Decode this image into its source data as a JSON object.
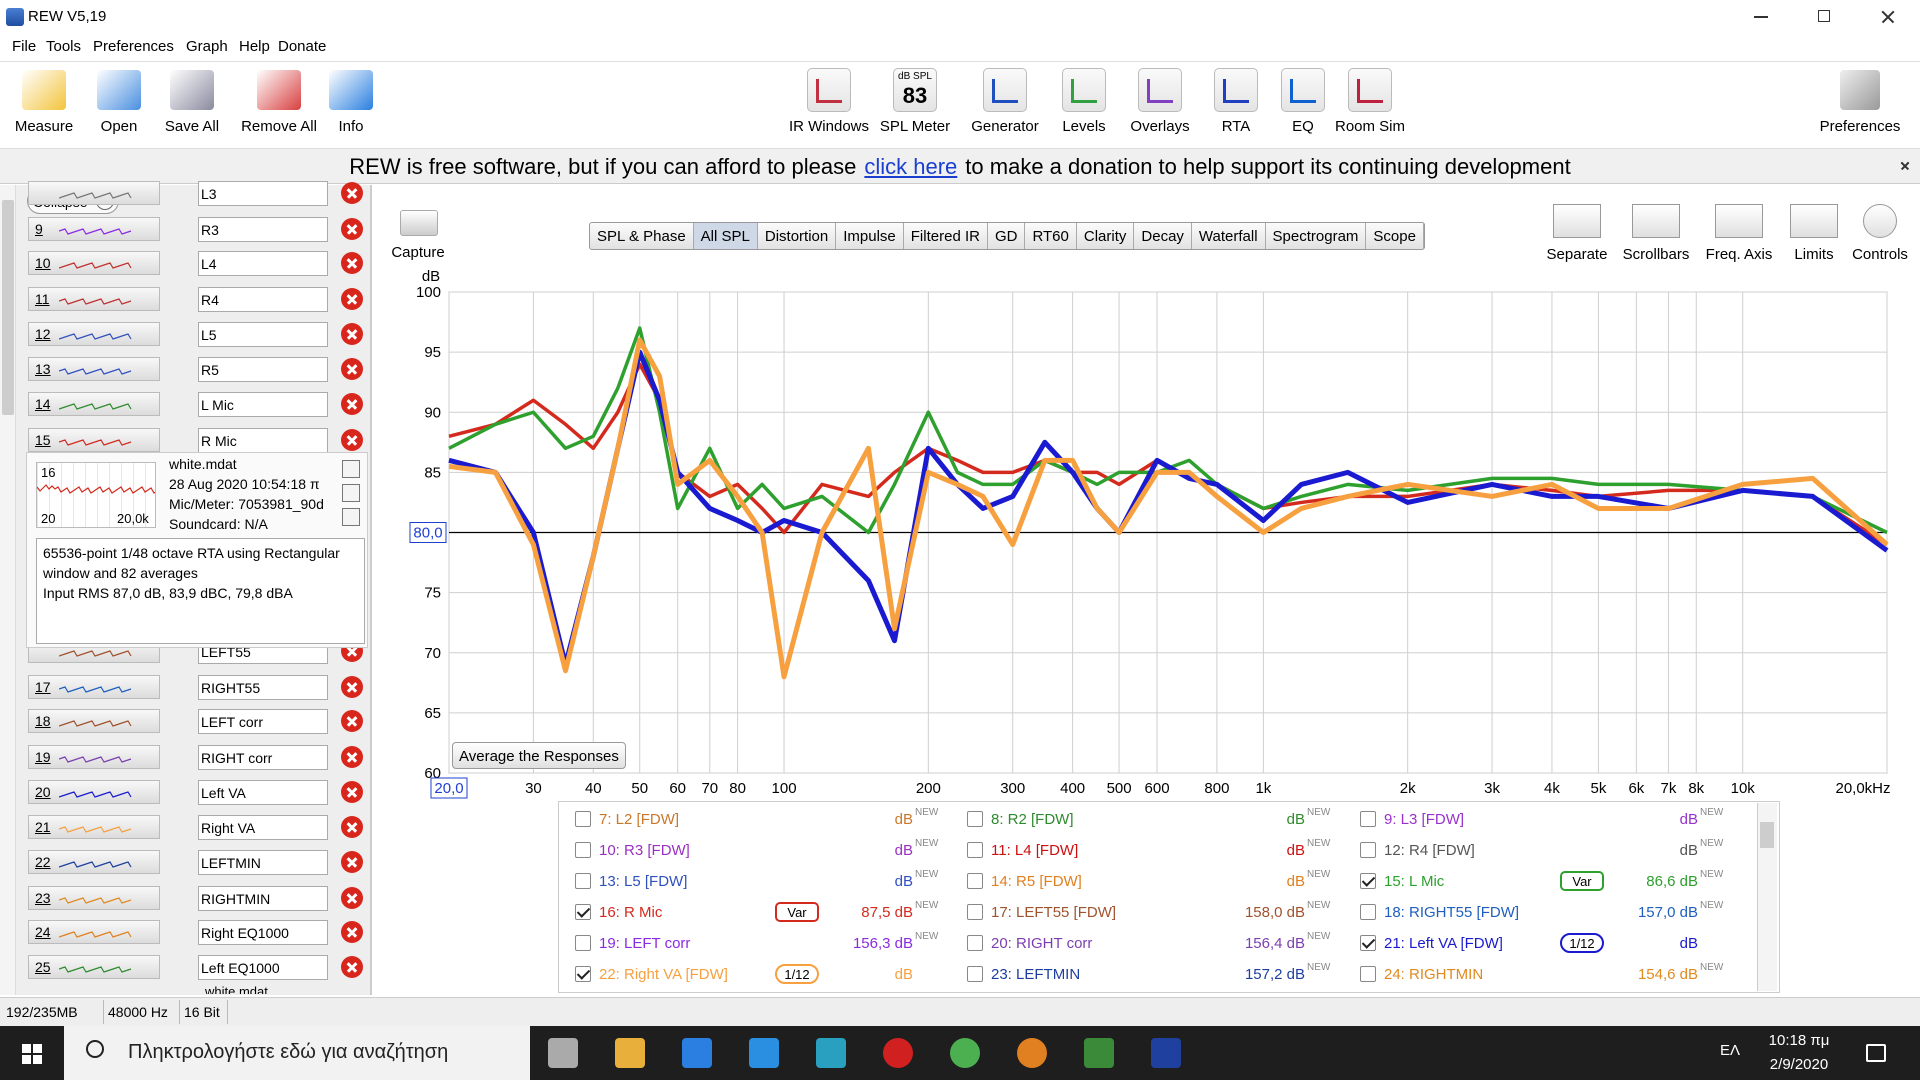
{
  "window": {
    "title": "REW V5,19"
  },
  "menu": [
    "File",
    "Tools",
    "Preferences",
    "Graph",
    "Help",
    "Donate"
  ],
  "toolbar_left": [
    "Measure",
    "Open",
    "Save All",
    "Remove All",
    "Info"
  ],
  "toolbar_center": [
    "IR Windows",
    "SPL Meter",
    "Generator",
    "Levels",
    "Overlays",
    "RTA",
    "EQ",
    "Room Sim"
  ],
  "spl_meter_icon": {
    "unit": "dB SPL",
    "reading": "83"
  },
  "toolbar_right": [
    "Preferences"
  ],
  "banner": {
    "before": "REW is free software, but if you can afford to please",
    "link": "click here",
    "after": "to make a donation to help support its continuing development"
  },
  "sidebar": {
    "collapse": "Collapse",
    "rows": [
      {
        "name": "L3"
      },
      {
        "number": "9",
        "name": "R3"
      },
      {
        "number": "10",
        "name": "L4"
      },
      {
        "number": "11",
        "name": "R4"
      },
      {
        "number": "12",
        "name": "L5"
      },
      {
        "number": "13",
        "name": "R5"
      },
      {
        "number": "14",
        "name": "L Mic"
      },
      {
        "number": "15",
        "name": "R Mic"
      },
      {
        "name": "LEFT55"
      },
      {
        "number": "17",
        "name": "RIGHT55"
      },
      {
        "number": "18",
        "name": "LEFT corr"
      },
      {
        "number": "19",
        "name": "RIGHT corr"
      },
      {
        "number": "20",
        "name": "Left VA"
      },
      {
        "number": "21",
        "name": "Right VA"
      },
      {
        "number": "22",
        "name": "LEFTMIN"
      },
      {
        "number": "23",
        "name": "RIGHTMIN"
      },
      {
        "number": "24",
        "name": "Right EQ1000"
      },
      {
        "number": "25",
        "name": "Left  EQ1000"
      }
    ],
    "expanded": {
      "number": "16",
      "thumb_start": "20",
      "thumb_end": "20,0k",
      "file": "white.mdat",
      "date": "28 Aug 2020 10:54:18 π",
      "mic": "Mic/Meter: 7053981_90d",
      "soundcard": "Soundcard: N/A",
      "notes": [
        "65536-point 1/48 octave RTA using Rectangular window and 82 averages",
        "Input RMS 87,0 dB, 83,9 dBC, 79,8 dBA"
      ]
    },
    "bottom": "white.mdat"
  },
  "graph_tools": {
    "capture": "Capture",
    "tabs": [
      "SPL & Phase",
      "All SPL",
      "Distortion",
      "Impulse",
      "Filtered IR",
      "GD",
      "RT60",
      "Clarity",
      "Decay",
      "Waterfall",
      "Spectrogram",
      "Scope"
    ],
    "active_tab": "All SPL",
    "right": [
      "Separate",
      "Scrollbars",
      "Freq. Axis",
      "Limits",
      "Controls"
    ],
    "average_button": "Average the Responses"
  },
  "chart_data": {
    "type": "line",
    "y_label": "dB",
    "log_x": true,
    "grid": true,
    "x": [
      20,
      25,
      30,
      35,
      40,
      45,
      50,
      55,
      60,
      70,
      80,
      90,
      100,
      120,
      150,
      170,
      200,
      230,
      260,
      300,
      350,
      400,
      450,
      500,
      600,
      700,
      800,
      1000,
      1200,
      1500,
      2000,
      3000,
      4000,
      5000,
      7000,
      10000,
      14000,
      20000
    ],
    "series": [
      {
        "name": "16: R Mic",
        "color": "#d42a1e",
        "values": [
          88,
          89,
          91,
          89,
          87,
          90,
          94,
          91,
          85,
          83,
          84,
          82,
          80,
          84,
          83,
          85,
          87,
          86,
          85,
          85,
          86,
          85,
          85,
          84,
          86,
          84.5,
          84,
          82,
          82.5,
          83,
          83,
          84,
          83.5,
          83,
          83.5,
          83.5,
          83,
          79
        ]
      },
      {
        "name": "15: L Mic",
        "color": "#2ea02e",
        "values": [
          87,
          89,
          90,
          87,
          88,
          92,
          97,
          90,
          82,
          87,
          82,
          84,
          82,
          83,
          80,
          84,
          90,
          85,
          84,
          84,
          86,
          85,
          84,
          85,
          85,
          86,
          84,
          82,
          83,
          84,
          83.5,
          84.5,
          84.5,
          84,
          84,
          83.5,
          83,
          80
        ]
      },
      {
        "name": "21: Left VA [FDW]",
        "color": "#1a1ad0",
        "values": [
          86,
          85,
          80,
          69,
          78,
          87,
          95,
          91,
          85,
          82,
          81,
          80,
          81,
          80,
          76,
          71,
          87,
          84,
          82,
          83,
          87.5,
          85,
          82,
          80,
          86,
          84.5,
          84,
          81,
          84,
          85,
          82.5,
          84,
          83,
          83,
          82,
          83.5,
          83,
          78.5
        ]
      },
      {
        "name": "22: Right VA [FDW]",
        "color": "#f7a040",
        "values": [
          85.5,
          85,
          79,
          68.5,
          78,
          87,
          96,
          93,
          84,
          86,
          83,
          80,
          68,
          80,
          87,
          72,
          85,
          84,
          83,
          79,
          86,
          86,
          82,
          80,
          85,
          85,
          83,
          80,
          82,
          83,
          84,
          83,
          84,
          82,
          82,
          84,
          84.5,
          79
        ]
      }
    ],
    "xlim": [
      20,
      20000
    ],
    "ylim": [
      60,
      100
    ],
    "xticks": [
      {
        "value": 20,
        "label": "20,0"
      },
      30,
      40,
      50,
      60,
      70,
      80,
      100,
      200,
      300,
      400,
      500,
      600,
      800,
      {
        "value": 1000,
        "label": "1k"
      },
      {
        "value": 2000,
        "label": "2k"
      },
      {
        "value": 3000,
        "label": "3k"
      },
      {
        "value": 4000,
        "label": "4k"
      },
      {
        "value": 5000,
        "label": "5k"
      },
      {
        "value": 6000,
        "label": "6k"
      },
      {
        "value": 7000,
        "label": "7k"
      },
      {
        "value": 8000,
        "label": "8k"
      },
      {
        "value": 10000,
        "label": "10k"
      },
      {
        "value": 20000,
        "label": "20,0kHz"
      }
    ],
    "yticks": [
      60,
      65,
      70,
      75,
      80,
      85,
      90,
      95,
      100
    ],
    "reference": {
      "value": 80,
      "label": "80,0"
    }
  },
  "legend": {
    "entries": [
      {
        "label": "7: L2 [FDW]",
        "color": "#c8782a",
        "value": "dB",
        "new": "NEW"
      },
      {
        "label": "8: R2 [FDW]",
        "color": "#2e8b2e",
        "value": "dB",
        "new": "NEW"
      },
      {
        "label": "9: L3 [FDW]",
        "color": "#9932cc",
        "value": "dB",
        "new": "NEW"
      },
      {
        "label": "10: R3 [FDW]",
        "color": "#9b30c0",
        "value": "dB",
        "new": "NEW"
      },
      {
        "label": "11: L4 [FDW]",
        "color": "#cc1010",
        "value": "dB",
        "new": "NEW"
      },
      {
        "label": "12: R4 [FDW]",
        "color": "#555555",
        "value": "dB",
        "new": "NEW"
      },
      {
        "label": "13: L5 [FDW]",
        "color": "#3050c0",
        "value": "dB",
        "new": "NEW"
      },
      {
        "label": "14: R5 [FDW]",
        "color": "#e08020",
        "value": "dB",
        "new": "NEW"
      },
      {
        "series": 1,
        "checked": true,
        "badge": "Var",
        "value": "86,6 dB",
        "new": "NEW"
      },
      {
        "series": 0,
        "checked": true,
        "badge": "Var",
        "value": "87,5 dB",
        "new": "NEW"
      },
      {
        "label": "17: LEFT55 [FDW]",
        "color": "#a0522d",
        "value": "158,0 dB",
        "new": "NEW"
      },
      {
        "label": "18: RIGHT55 [FDW]",
        "color": "#1f5fbf",
        "value": "157,0 dB",
        "new": "NEW"
      },
      {
        "label": "19: LEFT corr",
        "color": "#8a2be2",
        "value": "156,3 dB",
        "new": "NEW"
      },
      {
        "label": "20: RIGHT corr",
        "color": "#7b3fb0",
        "value": "156,4 dB",
        "new": "NEW"
      },
      {
        "series": 2,
        "checked": true,
        "badge": "1/12",
        "value": "dB"
      },
      {
        "series": 3,
        "checked": true,
        "badge": "1/12",
        "value": "dB"
      },
      {
        "label": "23: LEFTMIN",
        "color": "#1d3fa0",
        "value": "157,2 dB",
        "new": "NEW"
      },
      {
        "label": "24: RIGHTMIN",
        "color": "#e08a20",
        "value": "154,6 dB",
        "new": "NEW"
      }
    ]
  },
  "status": [
    "192/235MB",
    "48000 Hz",
    "16 Bit"
  ],
  "taskbar": {
    "search": "Πληκτρολογήστε εδώ για αναζήτηση",
    "lang": "ΕΛ",
    "time": "10:18 πμ",
    "date": "2/9/2020"
  }
}
